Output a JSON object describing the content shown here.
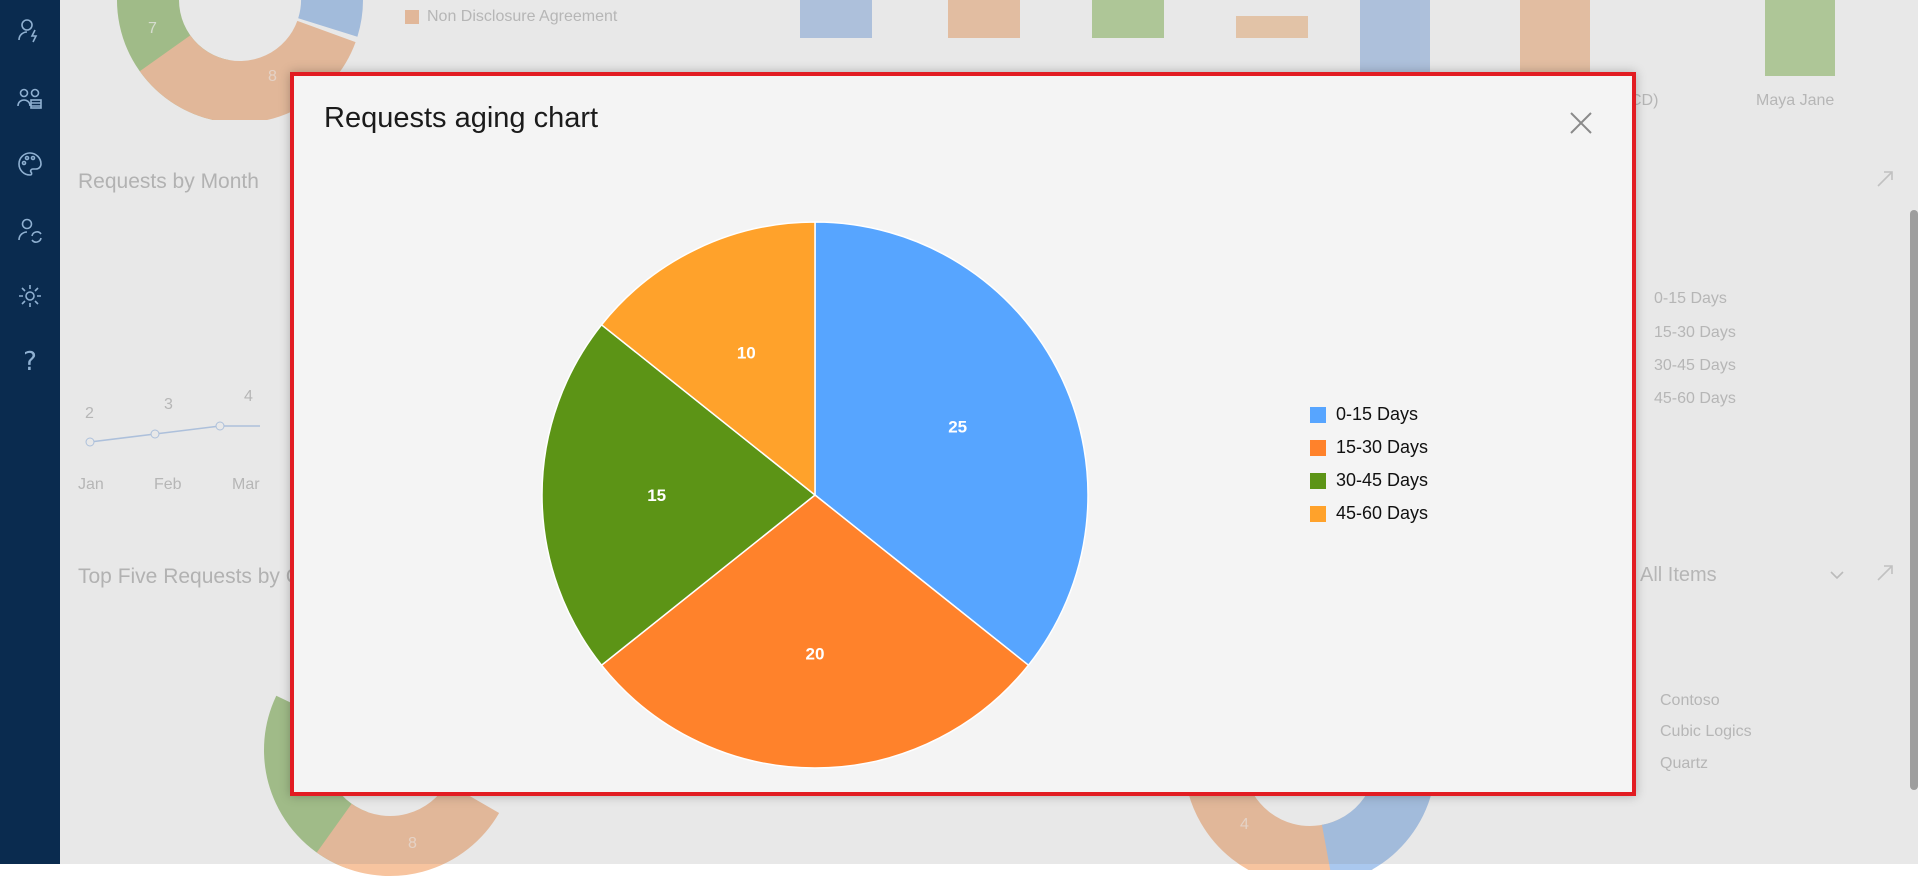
{
  "sidebar": {
    "items": [
      {
        "icon": "user-lightning-icon"
      },
      {
        "icon": "team-icon"
      },
      {
        "icon": "palette-icon"
      },
      {
        "icon": "user-sync-icon"
      },
      {
        "icon": "gear-icon"
      },
      {
        "icon": "help-icon",
        "glyph": "?"
      }
    ]
  },
  "background": {
    "legend_nda": "Non Disclosure Agreement",
    "donut_top_values": [
      "7",
      "8"
    ],
    "bar_person": "Maya Jane",
    "bar_person_partial": "CD)",
    "requests_by_month_title": "Requests by Month",
    "line_values": [
      "2",
      "3",
      "4"
    ],
    "months": [
      "Jan",
      "Feb",
      "Mar"
    ],
    "aging_legend": [
      "0-15 Days",
      "15-30 Days",
      "30-45 Days",
      "45-60 Days"
    ],
    "top_five_title": "Top Five Requests by C",
    "filter_value": "All Items",
    "company_legend": [
      "Contoso",
      "Cubic Logics",
      "Quartz"
    ],
    "donut_bottom_values": [
      "8",
      "4"
    ]
  },
  "modal": {
    "title": "Requests aging chart",
    "close_icon": "close-icon"
  },
  "chart_data": {
    "type": "pie",
    "title": "Requests aging chart",
    "categories": [
      "0-15 Days",
      "15-30 Days",
      "30-45 Days",
      "45-60 Days"
    ],
    "values": [
      25,
      20,
      15,
      10
    ],
    "colors": [
      "#57a5ff",
      "#ff822b",
      "#5c9416",
      "#ffa22b"
    ],
    "legend_position": "right"
  }
}
